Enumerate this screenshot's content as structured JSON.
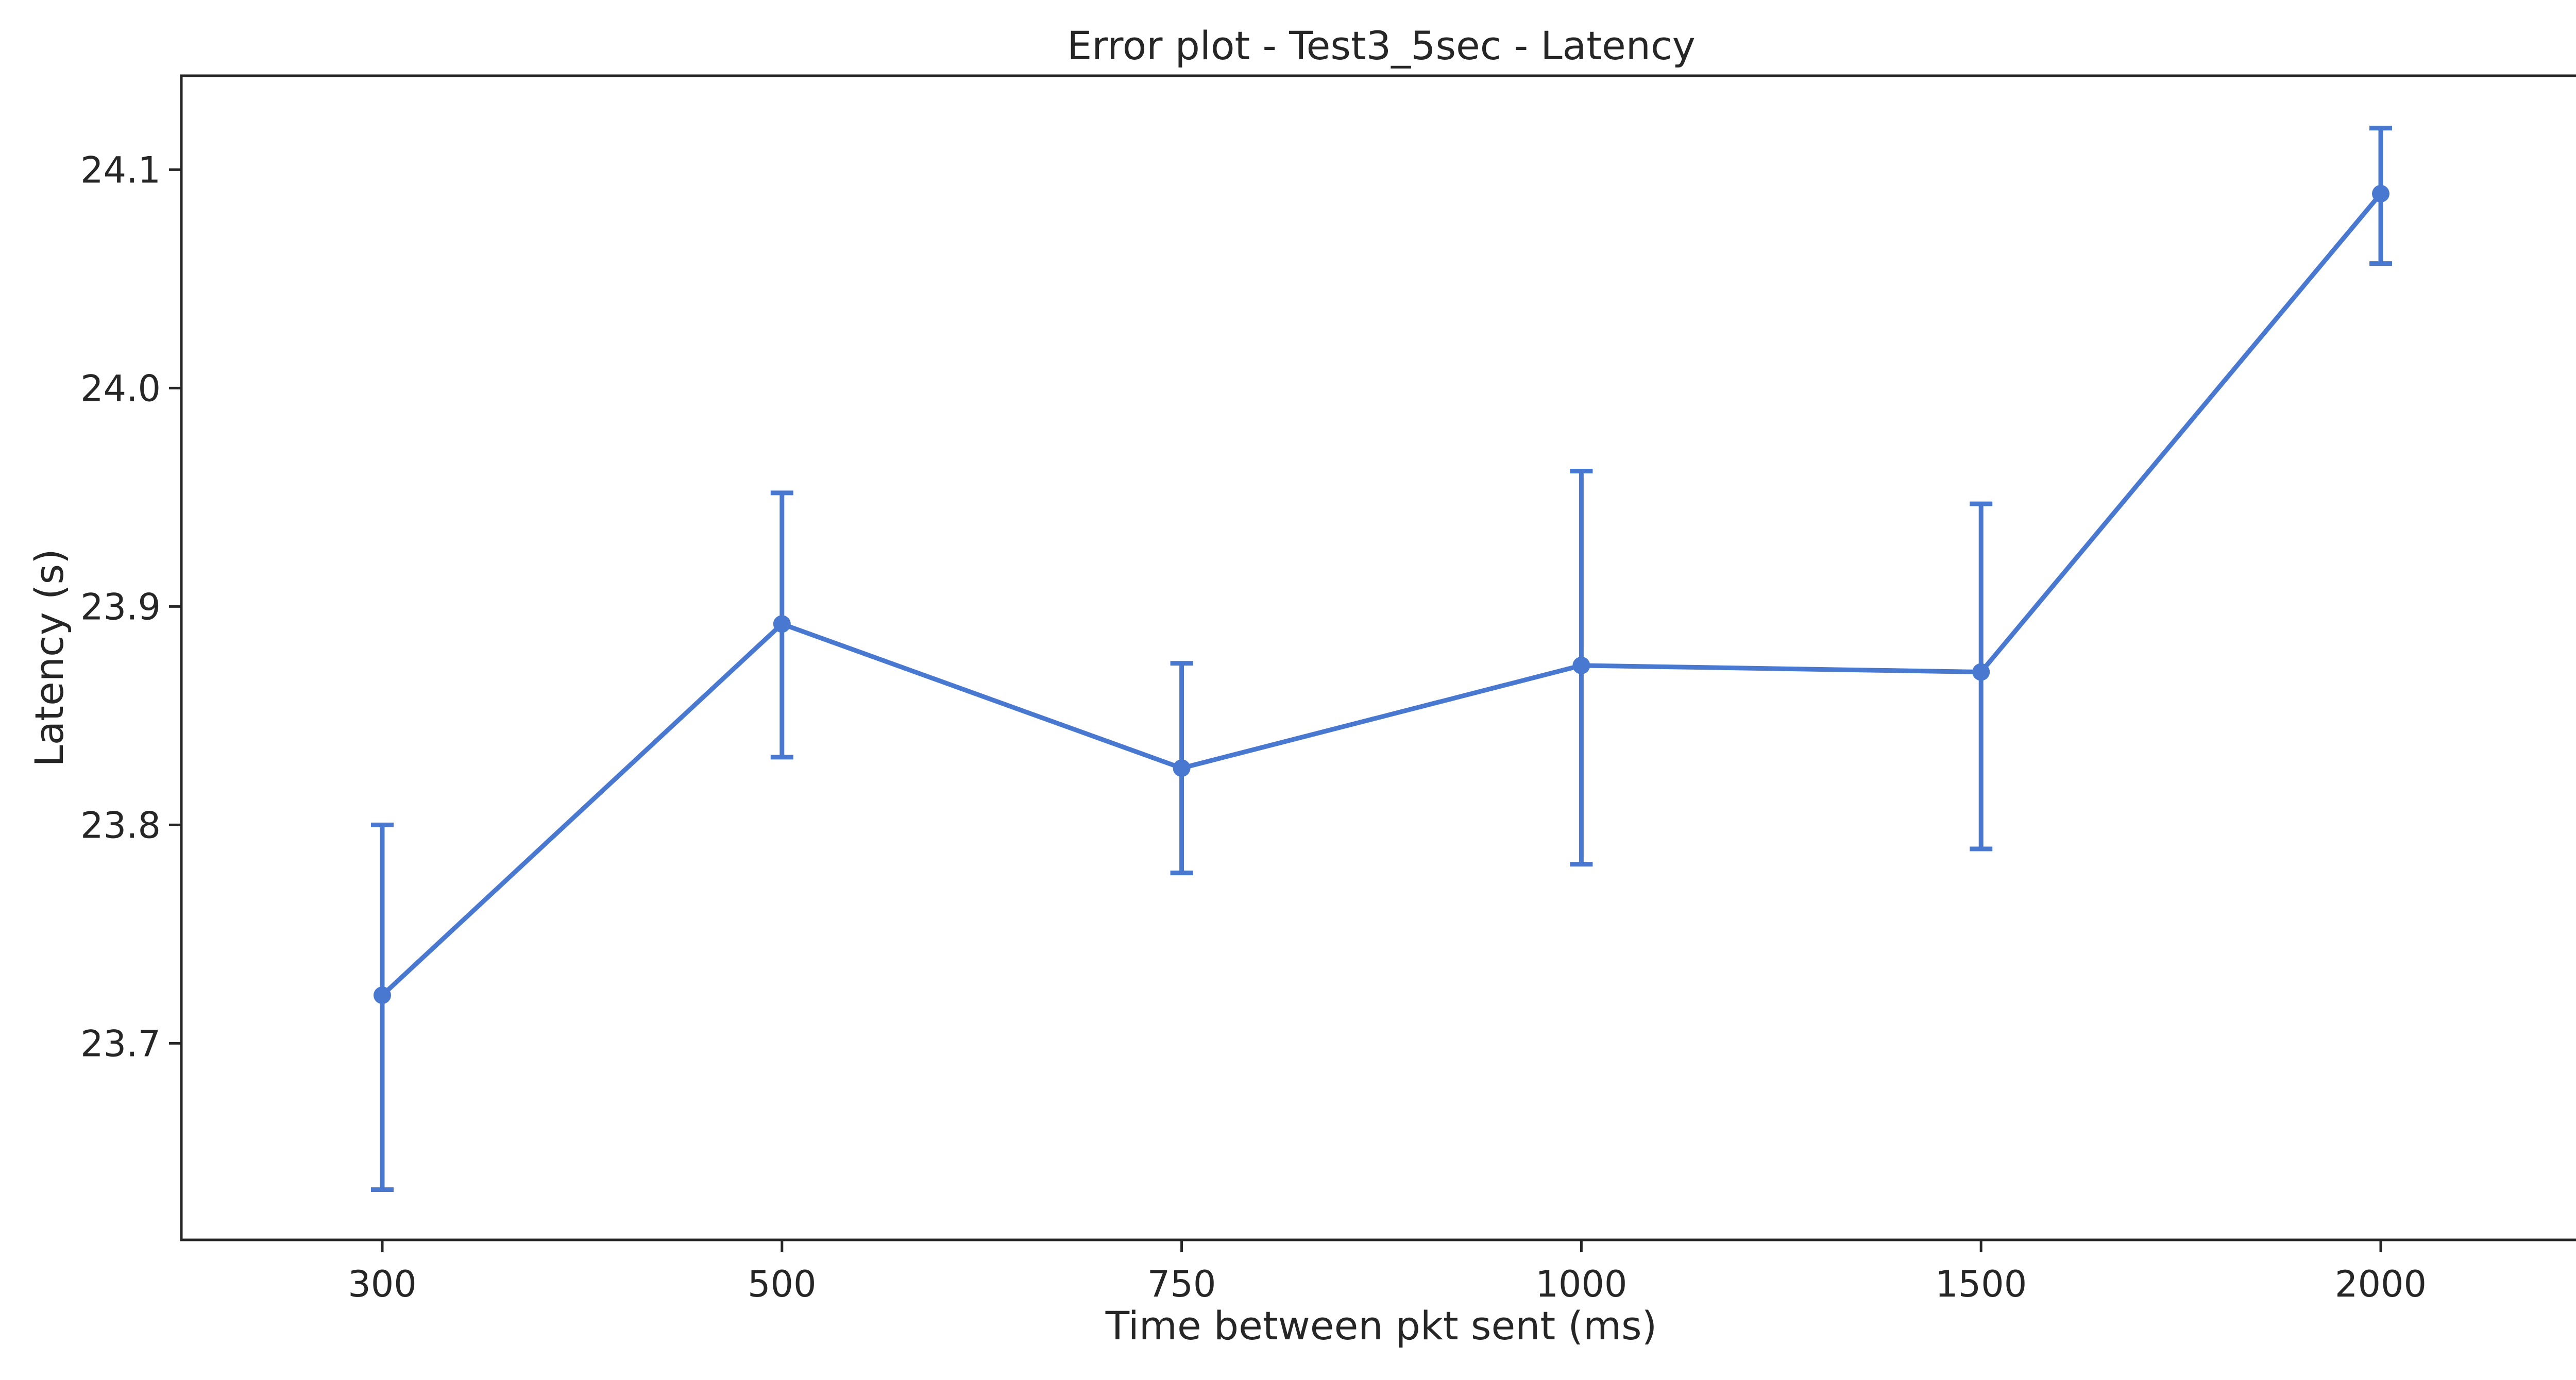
{
  "chart_data": {
    "type": "line",
    "title": "Error plot - Test3_5sec - Latency",
    "xlabel": "Time between pkt sent (ms)",
    "ylabel": "Latency (s)",
    "categories": [
      "300",
      "500",
      "750",
      "1000",
      "1500",
      "2000"
    ],
    "series": [
      {
        "values": [
          23.722,
          23.892,
          23.826,
          23.873,
          23.87,
          24.089
        ],
        "error_low": [
          23.633,
          23.831,
          23.778,
          23.782,
          23.789,
          24.057
        ],
        "error_high": [
          23.8,
          23.952,
          23.874,
          23.962,
          23.947,
          24.119
        ],
        "color": "#4878cf"
      }
    ],
    "yticks": [
      "23.7",
      "23.8",
      "23.9",
      "24.0",
      "24.1"
    ],
    "ylim": [
      23.61,
      24.143
    ],
    "grid": false,
    "legend": "none"
  }
}
